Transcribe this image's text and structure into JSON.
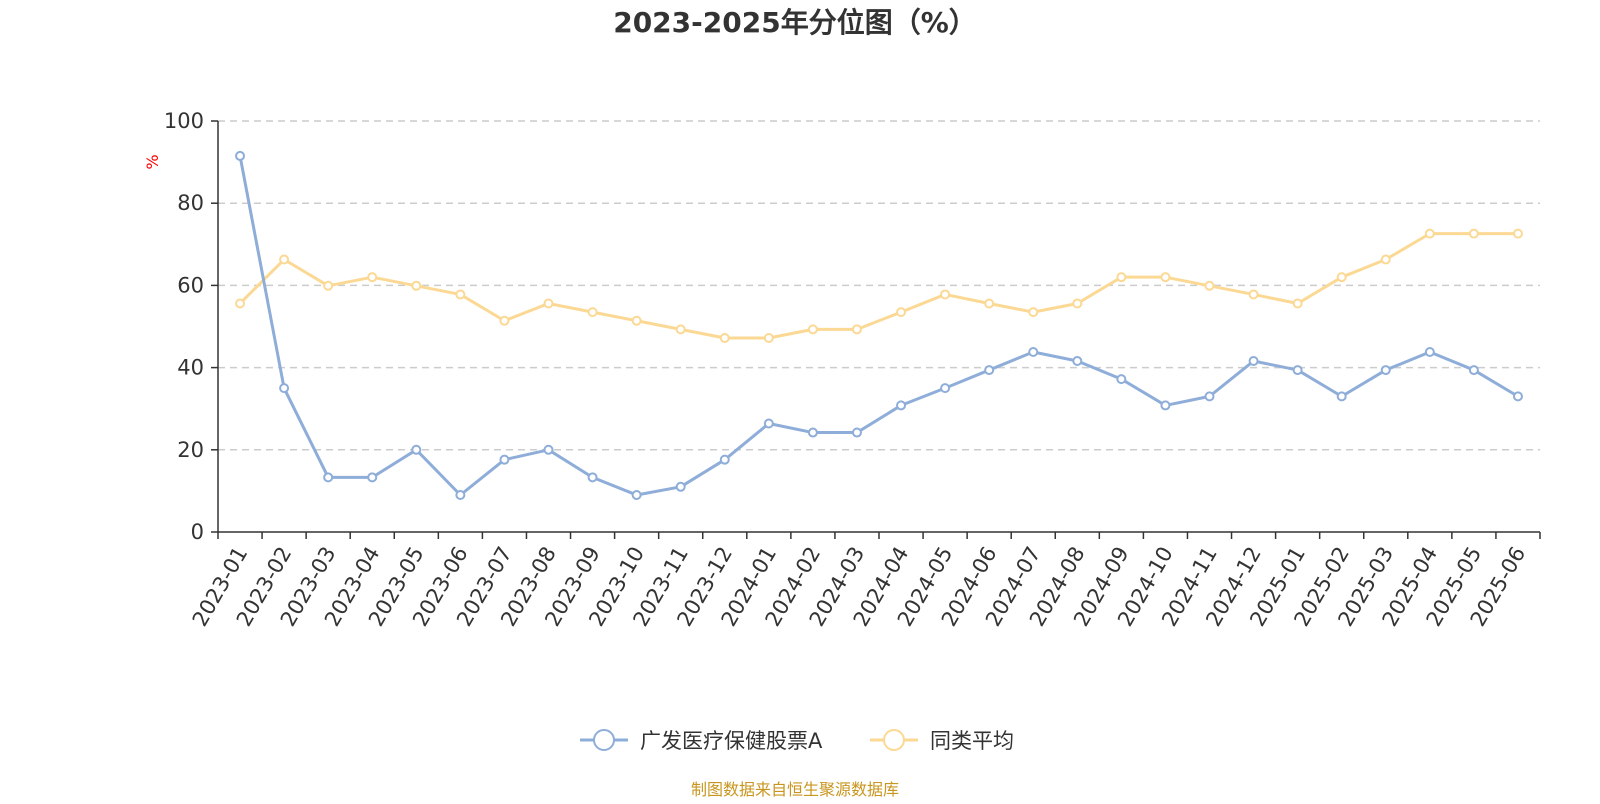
{
  "chart_data": {
    "type": "line",
    "title": "2023-2025年分位图（%）",
    "ylabel": "%",
    "xlabel": "",
    "ylim": [
      0,
      100
    ],
    "yticks": [
      0,
      20,
      40,
      60,
      80,
      100
    ],
    "grid": true,
    "legend_position": "bottom-center",
    "categories": [
      "2023-01",
      "2023-02",
      "2023-03",
      "2023-04",
      "2023-05",
      "2023-06",
      "2023-07",
      "2023-08",
      "2023-09",
      "2023-10",
      "2023-11",
      "2023-12",
      "2024-01",
      "2024-02",
      "2024-03",
      "2024-04",
      "2024-05",
      "2024-06",
      "2024-07",
      "2024-08",
      "2024-09",
      "2024-10",
      "2024-11",
      "2024-12",
      "2025-01",
      "2025-02",
      "2025-03",
      "2025-04",
      "2025-05",
      "2025-06"
    ],
    "series": [
      {
        "name": "广发医疗保健股票A",
        "color": "#8eadd8",
        "values": [
          91.5,
          35,
          13.3,
          13.3,
          20,
          9,
          17.6,
          20,
          13.3,
          9,
          11,
          17.6,
          26.4,
          24.2,
          24.2,
          30.8,
          35,
          39.4,
          43.8,
          41.6,
          37.2,
          30.8,
          33,
          41.6,
          39.4,
          33,
          39.4,
          43.8,
          39.4,
          33
        ]
      },
      {
        "name": "同类平均",
        "color": "#fbd994",
        "values": [
          55.6,
          66.3,
          59.9,
          62,
          59.9,
          57.8,
          51.4,
          55.6,
          53.5,
          51.4,
          49.3,
          47.2,
          47.2,
          49.3,
          49.3,
          53.5,
          57.8,
          55.6,
          53.5,
          55.6,
          62,
          62,
          59.9,
          57.8,
          55.6,
          62,
          66.3,
          72.6,
          72.6,
          72.6
        ]
      }
    ],
    "colors": {
      "title": "#333333",
      "axis": "#333333",
      "grid": "#cccccc",
      "unit": "#ff0000",
      "source": "#c8961e"
    }
  },
  "source_note": "制图数据来自恒生聚源数据库"
}
